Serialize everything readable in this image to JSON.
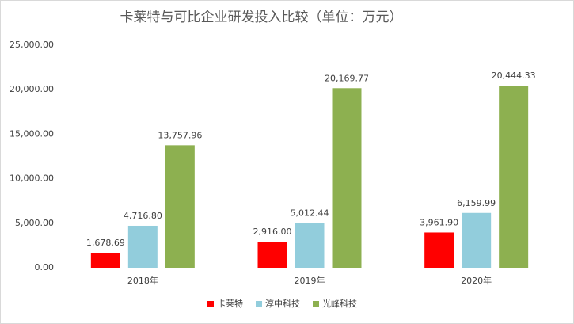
{
  "chart_data": {
    "type": "bar",
    "title": "卡莱特与可比企业研发投入比较（单位：万元）",
    "categories": [
      "2018年",
      "2019年",
      "2020年"
    ],
    "series": [
      {
        "name": "卡莱特",
        "color": "#ff0000",
        "values": [
          1678.69,
          2916.0,
          3961.9
        ],
        "value_labels": [
          "1,678.69",
          "2,916.00",
          "3,961.90"
        ]
      },
      {
        "name": "淳中科技",
        "color": "#92cddc",
        "values": [
          4716.8,
          5012.44,
          6159.99
        ],
        "value_labels": [
          "4,716.80",
          "5,012.44",
          "6,159.99"
        ]
      },
      {
        "name": "光峰科技",
        "color": "#8db050",
        "values": [
          13757.96,
          20169.77,
          20444.33
        ],
        "value_labels": [
          "13,757.96",
          "20,169.77",
          "20,444.33"
        ]
      }
    ],
    "ylim": [
      0,
      25000
    ],
    "yticks": [
      {
        "value": 0,
        "label": "0.00"
      },
      {
        "value": 5000,
        "label": "5,000.00"
      },
      {
        "value": 10000,
        "label": "10,000.00"
      },
      {
        "value": 15000,
        "label": "15,000.00"
      },
      {
        "value": 20000,
        "label": "20,000.00"
      },
      {
        "value": 25000,
        "label": "25,000.00"
      }
    ],
    "grid": false,
    "legend": "bottom"
  }
}
